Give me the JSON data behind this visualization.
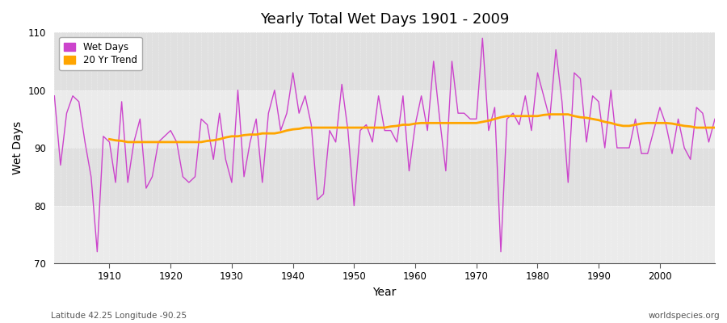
{
  "title": "Yearly Total Wet Days 1901 - 2009",
  "xlabel": "Year",
  "ylabel": "Wet Days",
  "subtitle_left": "Latitude 42.25 Longitude -90.25",
  "subtitle_right": "worldspecies.org",
  "ylim": [
    70,
    110
  ],
  "xlim": [
    1901,
    2009
  ],
  "wet_days_color": "#cc44cc",
  "trend_color": "#ffa500",
  "background_color": "#ffffff",
  "plot_bg_color": "#e8e8e8",
  "legend_labels": [
    "Wet Days",
    "20 Yr Trend"
  ],
  "years": [
    1901,
    1902,
    1903,
    1904,
    1905,
    1906,
    1907,
    1908,
    1909,
    1910,
    1911,
    1912,
    1913,
    1914,
    1915,
    1916,
    1917,
    1918,
    1919,
    1920,
    1921,
    1922,
    1923,
    1924,
    1925,
    1926,
    1927,
    1928,
    1929,
    1930,
    1931,
    1932,
    1933,
    1934,
    1935,
    1936,
    1937,
    1938,
    1939,
    1940,
    1941,
    1942,
    1943,
    1944,
    1945,
    1946,
    1947,
    1948,
    1949,
    1950,
    1951,
    1952,
    1953,
    1954,
    1955,
    1956,
    1957,
    1958,
    1959,
    1960,
    1961,
    1962,
    1963,
    1964,
    1965,
    1966,
    1967,
    1968,
    1969,
    1970,
    1971,
    1972,
    1973,
    1974,
    1975,
    1976,
    1977,
    1978,
    1979,
    1980,
    1981,
    1982,
    1983,
    1984,
    1985,
    1986,
    1987,
    1988,
    1989,
    1990,
    1991,
    1992,
    1993,
    1994,
    1995,
    1996,
    1997,
    1998,
    1999,
    2000,
    2001,
    2002,
    2003,
    2004,
    2005,
    2006,
    2007,
    2008,
    2009
  ],
  "wet_days": [
    99,
    87,
    96,
    99,
    98,
    91,
    85,
    72,
    92,
    91,
    84,
    98,
    84,
    91,
    95,
    83,
    85,
    91,
    92,
    93,
    91,
    85,
    84,
    85,
    95,
    94,
    88,
    96,
    88,
    84,
    100,
    85,
    91,
    95,
    84,
    96,
    100,
    93,
    96,
    103,
    96,
    99,
    94,
    81,
    82,
    93,
    91,
    101,
    93,
    80,
    93,
    94,
    91,
    99,
    93,
    93,
    91,
    99,
    86,
    94,
    99,
    93,
    105,
    95,
    86,
    105,
    96,
    96,
    95,
    95,
    109,
    93,
    97,
    72,
    95,
    96,
    94,
    99,
    93,
    103,
    99,
    95,
    107,
    98,
    84,
    103,
    102,
    91,
    99,
    98,
    90,
    100,
    90,
    90,
    90,
    95,
    89,
    89,
    93,
    97,
    94,
    89,
    95,
    90,
    88,
    97,
    96,
    91,
    95
  ],
  "trend_years": [
    1910,
    1911,
    1912,
    1913,
    1914,
    1915,
    1916,
    1917,
    1918,
    1919,
    1920,
    1921,
    1922,
    1923,
    1924,
    1925,
    1926,
    1927,
    1928,
    1929,
    1930,
    1931,
    1932,
    1933,
    1934,
    1935,
    1936,
    1937,
    1938,
    1939,
    1940,
    1941,
    1942,
    1943,
    1944,
    1945,
    1946,
    1947,
    1948,
    1949,
    1950,
    1951,
    1952,
    1953,
    1954,
    1955,
    1956,
    1957,
    1958,
    1959,
    1960,
    1961,
    1962,
    1963,
    1964,
    1965,
    1966,
    1967,
    1968,
    1969,
    1970,
    1971,
    1972,
    1973,
    1974,
    1975,
    1976,
    1977,
    1978,
    1979,
    1980,
    1981,
    1982,
    1983,
    1984,
    1985,
    1986,
    1987,
    1988,
    1989,
    1990,
    1991,
    1992,
    1993,
    1994,
    1995,
    1996,
    1997,
    1998,
    1999,
    2000,
    2001,
    2002,
    2003,
    2004,
    2005,
    2006,
    2007,
    2008,
    2009
  ],
  "trend_values": [
    91.5,
    91.3,
    91.2,
    91.0,
    91.0,
    91.0,
    91.0,
    91.0,
    91.0,
    91.0,
    91.0,
    91.0,
    91.0,
    91.0,
    91.0,
    91.0,
    91.2,
    91.3,
    91.5,
    91.8,
    92.0,
    92.0,
    92.2,
    92.3,
    92.3,
    92.5,
    92.5,
    92.5,
    92.7,
    93.0,
    93.2,
    93.3,
    93.5,
    93.5,
    93.5,
    93.5,
    93.5,
    93.5,
    93.5,
    93.5,
    93.5,
    93.5,
    93.5,
    93.5,
    93.5,
    93.5,
    93.7,
    93.8,
    94.0,
    94.0,
    94.2,
    94.3,
    94.3,
    94.3,
    94.3,
    94.3,
    94.3,
    94.3,
    94.3,
    94.3,
    94.3,
    94.5,
    94.7,
    95.0,
    95.3,
    95.5,
    95.5,
    95.5,
    95.5,
    95.5,
    95.5,
    95.7,
    95.8,
    95.8,
    95.8,
    95.8,
    95.5,
    95.3,
    95.2,
    95.0,
    94.8,
    94.5,
    94.3,
    94.0,
    93.8,
    93.8,
    94.0,
    94.2,
    94.3,
    94.3,
    94.3,
    94.3,
    94.2,
    94.0,
    93.8,
    93.7,
    93.5,
    93.5,
    93.5,
    93.5
  ],
  "xticks": [
    1910,
    1920,
    1930,
    1940,
    1950,
    1960,
    1970,
    1980,
    1990,
    2000
  ],
  "yticks": [
    70,
    80,
    90,
    100,
    110
  ]
}
